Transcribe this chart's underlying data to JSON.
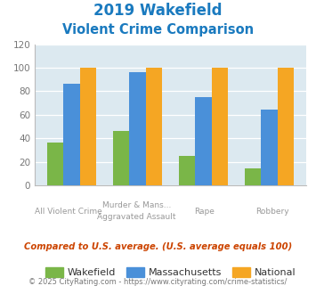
{
  "title_line1": "2019 Wakefield",
  "title_line2": "Violent Crime Comparison",
  "title_color": "#1a7abf",
  "cat_labels_row1": [
    "",
    "Murder & Mans...",
    "",
    ""
  ],
  "cat_labels_row2": [
    "All Violent Crime",
    "Aggravated Assault",
    "Rape",
    "Robbery"
  ],
  "wakefield": [
    36,
    46,
    25,
    14
  ],
  "massachusetts": [
    86,
    96,
    75,
    64
  ],
  "national": [
    100,
    100,
    100,
    100
  ],
  "wakefield_color": "#7ab648",
  "massachusetts_color": "#4a90d9",
  "national_color": "#f5a623",
  "ylim": [
    0,
    120
  ],
  "yticks": [
    0,
    20,
    40,
    60,
    80,
    100,
    120
  ],
  "plot_bg_color": "#dce9f0",
  "note_text": "Compared to U.S. average. (U.S. average equals 100)",
  "note_color": "#cc4400",
  "copyright_text": "© 2025 CityRating.com - https://www.cityrating.com/crime-statistics/",
  "copyright_color": "#777777",
  "copyright_link_color": "#4a90d9",
  "legend_labels": [
    "Wakefield",
    "Massachusetts",
    "National"
  ],
  "bar_width": 0.25
}
